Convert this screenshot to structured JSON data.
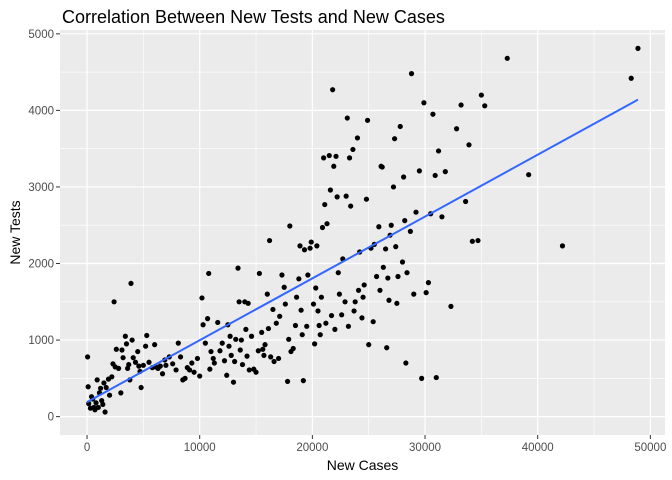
{
  "chart_data": {
    "type": "scatter",
    "title": "Correlation Between New Tests and New Cases",
    "xlabel": "New Cases",
    "ylabel": "New Tests",
    "xlim": [
      -2400,
      51300
    ],
    "ylim": [
      -240,
      5050
    ],
    "xticks": [
      0,
      10000,
      20000,
      30000,
      40000,
      50000
    ],
    "yticks": [
      0,
      1000,
      2000,
      3000,
      4000,
      5000
    ],
    "xtick_labels": [
      "0",
      "10000",
      "20000",
      "30000",
      "40000",
      "50000"
    ],
    "ytick_labels": [
      "0",
      "1000",
      "2000",
      "3000",
      "4000",
      "5000"
    ],
    "grid": true,
    "panel_background": "#ebebeb",
    "grid_color": "#ffffff",
    "point_color": "#000000",
    "trend_color": "#3366ff",
    "points": [
      [
        50,
        780
      ],
      [
        100,
        390
      ],
      [
        150,
        170
      ],
      [
        300,
        110
      ],
      [
        400,
        260
      ],
      [
        500,
        230
      ],
      [
        600,
        120
      ],
      [
        700,
        90
      ],
      [
        800,
        180
      ],
      [
        900,
        480
      ],
      [
        1000,
        120
      ],
      [
        1100,
        310
      ],
      [
        1200,
        370
      ],
      [
        1300,
        210
      ],
      [
        1400,
        160
      ],
      [
        1500,
        440
      ],
      [
        1600,
        60
      ],
      [
        1700,
        380
      ],
      [
        1900,
        490
      ],
      [
        2000,
        280
      ],
      [
        2200,
        520
      ],
      [
        2300,
        690
      ],
      [
        2400,
        1500
      ],
      [
        2500,
        650
      ],
      [
        2600,
        880
      ],
      [
        2800,
        630
      ],
      [
        3000,
        310
      ],
      [
        3100,
        870
      ],
      [
        3200,
        770
      ],
      [
        3400,
        1050
      ],
      [
        3500,
        950
      ],
      [
        3600,
        630
      ],
      [
        3700,
        680
      ],
      [
        3800,
        480
      ],
      [
        3900,
        1740
      ],
      [
        4000,
        1000
      ],
      [
        4100,
        770
      ],
      [
        4300,
        710
      ],
      [
        4500,
        850
      ],
      [
        4600,
        660
      ],
      [
        4700,
        590
      ],
      [
        4800,
        380
      ],
      [
        5000,
        670
      ],
      [
        5200,
        920
      ],
      [
        5300,
        1060
      ],
      [
        5500,
        710
      ],
      [
        5800,
        640
      ],
      [
        6000,
        940
      ],
      [
        6100,
        650
      ],
      [
        6300,
        630
      ],
      [
        6500,
        660
      ],
      [
        6700,
        560
      ],
      [
        6900,
        740
      ],
      [
        7000,
        670
      ],
      [
        7300,
        780
      ],
      [
        7600,
        690
      ],
      [
        7900,
        610
      ],
      [
        8100,
        960
      ],
      [
        8300,
        780
      ],
      [
        8500,
        480
      ],
      [
        8700,
        500
      ],
      [
        8900,
        640
      ],
      [
        9100,
        610
      ],
      [
        9300,
        700
      ],
      [
        9500,
        580
      ],
      [
        9800,
        760
      ],
      [
        10000,
        530
      ],
      [
        10200,
        1550
      ],
      [
        10300,
        1200
      ],
      [
        10500,
        960
      ],
      [
        10700,
        1280
      ],
      [
        10800,
        1870
      ],
      [
        10900,
        620
      ],
      [
        11000,
        850
      ],
      [
        11200,
        760
      ],
      [
        11300,
        700
      ],
      [
        11600,
        1230
      ],
      [
        11800,
        860
      ],
      [
        12000,
        960
      ],
      [
        12200,
        730
      ],
      [
        12400,
        540
      ],
      [
        12500,
        1200
      ],
      [
        12600,
        920
      ],
      [
        12700,
        1050
      ],
      [
        12800,
        800
      ],
      [
        13000,
        450
      ],
      [
        13100,
        720
      ],
      [
        13200,
        1010
      ],
      [
        13400,
        1940
      ],
      [
        13500,
        1500
      ],
      [
        13600,
        870
      ],
      [
        13700,
        1000
      ],
      [
        13800,
        680
      ],
      [
        14000,
        1500
      ],
      [
        14100,
        1140
      ],
      [
        14200,
        790
      ],
      [
        14300,
        1480
      ],
      [
        14400,
        610
      ],
      [
        14600,
        1050
      ],
      [
        14800,
        620
      ],
      [
        15000,
        580
      ],
      [
        15200,
        860
      ],
      [
        15300,
        1870
      ],
      [
        15500,
        1100
      ],
      [
        15600,
        880
      ],
      [
        15700,
        800
      ],
      [
        15800,
        940
      ],
      [
        16000,
        1600
      ],
      [
        16100,
        1150
      ],
      [
        16200,
        2300
      ],
      [
        16300,
        780
      ],
      [
        16500,
        1400
      ],
      [
        16600,
        720
      ],
      [
        16800,
        1220
      ],
      [
        17000,
        760
      ],
      [
        17100,
        1310
      ],
      [
        17300,
        1850
      ],
      [
        17500,
        1690
      ],
      [
        17600,
        1470
      ],
      [
        17800,
        460
      ],
      [
        17900,
        1010
      ],
      [
        18000,
        2490
      ],
      [
        18100,
        850
      ],
      [
        18300,
        890
      ],
      [
        18500,
        1190
      ],
      [
        18600,
        1560
      ],
      [
        18800,
        1800
      ],
      [
        18900,
        2230
      ],
      [
        19000,
        1390
      ],
      [
        19100,
        1070
      ],
      [
        19200,
        470
      ],
      [
        19300,
        2180
      ],
      [
        19500,
        1180
      ],
      [
        19600,
        1850
      ],
      [
        19800,
        2200
      ],
      [
        19900,
        2280
      ],
      [
        20100,
        1470
      ],
      [
        20200,
        950
      ],
      [
        20300,
        1680
      ],
      [
        20400,
        2230
      ],
      [
        20500,
        1380
      ],
      [
        20600,
        1190
      ],
      [
        20700,
        1070
      ],
      [
        20800,
        1560
      ],
      [
        20900,
        2470
      ],
      [
        21000,
        3380
      ],
      [
        21100,
        2770
      ],
      [
        21200,
        1220
      ],
      [
        21300,
        2520
      ],
      [
        21500,
        3410
      ],
      [
        21600,
        2960
      ],
      [
        21700,
        1320
      ],
      [
        21800,
        4270
      ],
      [
        21900,
        3270
      ],
      [
        22000,
        1140
      ],
      [
        22100,
        3400
      ],
      [
        22200,
        2870
      ],
      [
        22300,
        1880
      ],
      [
        22400,
        1600
      ],
      [
        22600,
        1330
      ],
      [
        22700,
        2060
      ],
      [
        22900,
        1500
      ],
      [
        23000,
        2880
      ],
      [
        23100,
        3900
      ],
      [
        23200,
        1180
      ],
      [
        23300,
        3380
      ],
      [
        23400,
        2750
      ],
      [
        23600,
        3490
      ],
      [
        23700,
        1380
      ],
      [
        23800,
        1500
      ],
      [
        24000,
        3640
      ],
      [
        24100,
        1650
      ],
      [
        24200,
        2150
      ],
      [
        24400,
        1290
      ],
      [
        24500,
        1560
      ],
      [
        24600,
        1720
      ],
      [
        24800,
        2840
      ],
      [
        24900,
        3870
      ],
      [
        25000,
        940
      ],
      [
        25200,
        2200
      ],
      [
        25400,
        1240
      ],
      [
        25500,
        2250
      ],
      [
        25700,
        1830
      ],
      [
        25900,
        2480
      ],
      [
        26000,
        1650
      ],
      [
        26100,
        3270
      ],
      [
        26200,
        3260
      ],
      [
        26300,
        1950
      ],
      [
        26500,
        2190
      ],
      [
        26600,
        900
      ],
      [
        26700,
        1810
      ],
      [
        26800,
        1520
      ],
      [
        26900,
        2370
      ],
      [
        27000,
        2500
      ],
      [
        27200,
        3000
      ],
      [
        27300,
        3630
      ],
      [
        27400,
        2220
      ],
      [
        27500,
        1480
      ],
      [
        27600,
        1830
      ],
      [
        27800,
        3790
      ],
      [
        28000,
        2020
      ],
      [
        28100,
        3130
      ],
      [
        28200,
        2560
      ],
      [
        28300,
        700
      ],
      [
        28400,
        1880
      ],
      [
        28700,
        2420
      ],
      [
        28800,
        4480
      ],
      [
        29000,
        1600
      ],
      [
        29200,
        2670
      ],
      [
        29500,
        3210
      ],
      [
        29700,
        500
      ],
      [
        29900,
        4100
      ],
      [
        30100,
        1620
      ],
      [
        30300,
        1750
      ],
      [
        30500,
        2650
      ],
      [
        30700,
        3950
      ],
      [
        30900,
        3150
      ],
      [
        31000,
        510
      ],
      [
        31200,
        3470
      ],
      [
        31500,
        2610
      ],
      [
        31800,
        3200
      ],
      [
        32300,
        1440
      ],
      [
        32800,
        3760
      ],
      [
        33200,
        4070
      ],
      [
        33600,
        2810
      ],
      [
        33900,
        3550
      ],
      [
        34200,
        2290
      ],
      [
        34700,
        2300
      ],
      [
        35000,
        4200
      ],
      [
        35300,
        4060
      ],
      [
        37300,
        4680
      ],
      [
        39200,
        3160
      ],
      [
        42200,
        2230
      ],
      [
        48300,
        4420
      ],
      [
        48900,
        4810
      ]
    ],
    "trend_line": [
      [
        0,
        190
      ],
      [
        48900,
        4140
      ]
    ]
  }
}
